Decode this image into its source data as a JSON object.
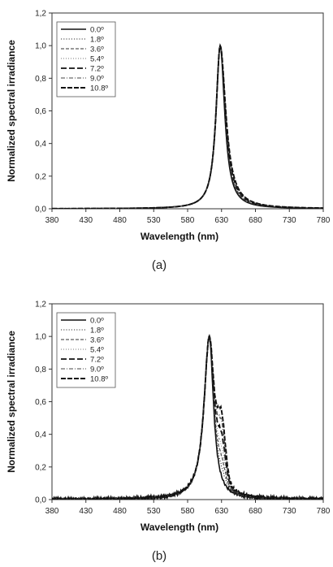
{
  "chart_data": [
    {
      "type": "line",
      "xlabel": "Wavelength (nm)",
      "ylabel": "Normalized spectral irradiance",
      "caption": "(a)",
      "xlim": [
        380,
        780
      ],
      "ylim": [
        0,
        1.2
      ],
      "x_ticks": [
        "380",
        "430",
        "480",
        "530",
        "580",
        "630",
        "680",
        "730",
        "780"
      ],
      "y_ticks": [
        "0,0",
        "0,2",
        "0,4",
        "0,6",
        "0,8",
        "1,0",
        "1,2"
      ],
      "legend_position": "top-left",
      "series": [
        {
          "name": "0.0º",
          "style": "solid",
          "peak": 628,
          "width_left": 11,
          "width_right": 12,
          "shoulder": 0
        },
        {
          "name": "1.8º",
          "style": "dotted",
          "peak": 628,
          "width_left": 11,
          "width_right": 12.5,
          "shoulder": 0
        },
        {
          "name": "3.6º",
          "style": "dashed",
          "peak": 628,
          "width_left": 11,
          "width_right": 13,
          "shoulder": 0
        },
        {
          "name": "5.4º",
          "style": "dotted-light",
          "peak": 628,
          "width_left": 11,
          "width_right": 13.5,
          "shoulder": 0
        },
        {
          "name": "7.2º",
          "style": "long-dash",
          "peak": 628,
          "width_left": 11,
          "width_right": 14,
          "shoulder": 0
        },
        {
          "name": "9.0º",
          "style": "dash-dot",
          "peak": 628,
          "width_left": 11,
          "width_right": 14.5,
          "shoulder": 0
        },
        {
          "name": "10.8º",
          "style": "heavy-dash",
          "peak": 628,
          "width_left": 11,
          "width_right": 15,
          "shoulder": 0
        }
      ]
    },
    {
      "type": "line",
      "xlabel": "Wavelength (nm)",
      "ylabel": "Normalized spectral irradiance",
      "caption": "(b)",
      "xlim": [
        380,
        780
      ],
      "ylim": [
        0,
        1.2
      ],
      "x_ticks": [
        "380",
        "430",
        "480",
        "530",
        "580",
        "630",
        "680",
        "730",
        "780"
      ],
      "y_ticks": [
        "0,0",
        "0,2",
        "0,4",
        "0,6",
        "0,8",
        "1,0",
        "1,2"
      ],
      "legend_position": "top-left",
      "series": [
        {
          "name": "0.0º",
          "style": "solid",
          "peak": 612,
          "width_left": 14,
          "width_right": 11,
          "shoulder": 0
        },
        {
          "name": "1.8º",
          "style": "dotted",
          "peak": 612,
          "width_left": 14,
          "width_right": 11.5,
          "shoulder": 0.05
        },
        {
          "name": "3.6º",
          "style": "dashed",
          "peak": 612,
          "width_left": 14,
          "width_right": 12,
          "shoulder": 0.1
        },
        {
          "name": "5.4º",
          "style": "dotted-light",
          "peak": 612,
          "width_left": 14,
          "width_right": 12.5,
          "shoulder": 0.15
        },
        {
          "name": "7.2º",
          "style": "long-dash",
          "peak": 612,
          "width_left": 14,
          "width_right": 13,
          "shoulder": 0.22
        },
        {
          "name": "9.0º",
          "style": "dash-dot",
          "peak": 612,
          "width_left": 14,
          "width_right": 13.5,
          "shoulder": 0.28
        },
        {
          "name": "10.8º",
          "style": "heavy-dash",
          "peak": 612,
          "width_left": 14,
          "width_right": 14,
          "shoulder": 0.33
        }
      ]
    }
  ]
}
